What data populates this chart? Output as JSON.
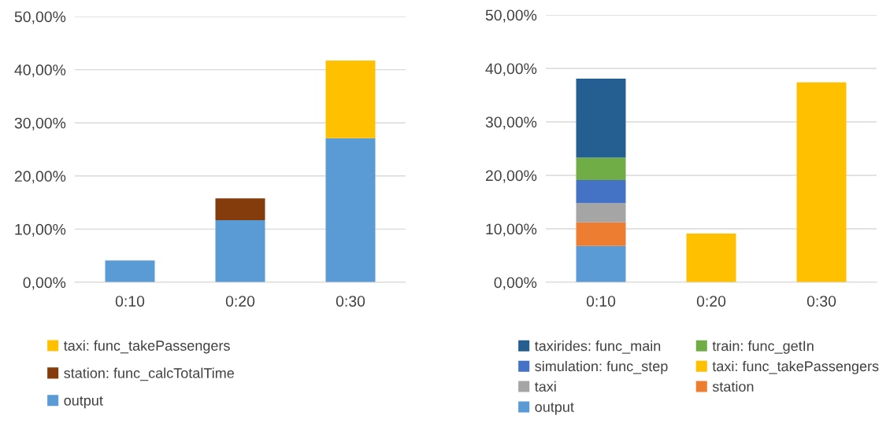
{
  "chart_data": [
    {
      "type": "bar",
      "stacked": true,
      "categories": [
        "0:10",
        "0:20",
        "0:30"
      ],
      "series": [
        {
          "name": "output",
          "color": "#5b9bd5",
          "values": [
            4.1,
            11.7,
            27.1
          ]
        },
        {
          "name": "station: func_calcTotalTime",
          "color": "#843c0c",
          "values": [
            null,
            4.1,
            null
          ]
        },
        {
          "name": "taxi: func_takePassengers",
          "color": "#ffc000",
          "values": [
            null,
            null,
            14.6
          ]
        }
      ],
      "ylim": [
        0,
        50
      ],
      "yticks": [
        {
          "value": 0,
          "label": "0,00%"
        },
        {
          "value": 10,
          "label": "10,00%"
        },
        {
          "value": 20,
          "label": "20,00%"
        },
        {
          "value": 30,
          "label": "30,00%"
        },
        {
          "value": 40,
          "label": "40,00%"
        },
        {
          "value": 50,
          "label": "50,00%"
        }
      ],
      "grid": "y",
      "legend": "bottom"
    },
    {
      "type": "bar",
      "stacked": true,
      "categories": [
        "0:10",
        "0:20",
        "0:30"
      ],
      "series": [
        {
          "name": "output",
          "color": "#5b9bd5",
          "values": [
            6.8,
            null,
            null
          ]
        },
        {
          "name": "station",
          "color": "#ed7d31",
          "values": [
            4.4,
            null,
            null
          ]
        },
        {
          "name": "taxi",
          "color": "#a5a5a5",
          "values": [
            3.6,
            null,
            null
          ]
        },
        {
          "name": "taxi: func_takePassengers",
          "color": "#ffc000",
          "values": [
            null,
            9.1,
            37.4
          ]
        },
        {
          "name": "simulation: func_step",
          "color": "#4472c4",
          "values": [
            4.3,
            null,
            null
          ]
        },
        {
          "name": "train: func_getIn",
          "color": "#70ad47",
          "values": [
            4.2,
            null,
            null
          ]
        },
        {
          "name": "taxirides: func_main",
          "color": "#255e91",
          "values": [
            14.8,
            null,
            null
          ]
        }
      ],
      "ylim": [
        0,
        50
      ],
      "yticks": [
        {
          "value": 0,
          "label": "0,00%"
        },
        {
          "value": 10,
          "label": "10,00%"
        },
        {
          "value": 20,
          "label": "20,00%"
        },
        {
          "value": 30,
          "label": "30,00%"
        },
        {
          "value": 40,
          "label": "40,00%"
        },
        {
          "value": 50,
          "label": "50,00%"
        }
      ],
      "grid": "y",
      "legend": "bottom"
    }
  ]
}
